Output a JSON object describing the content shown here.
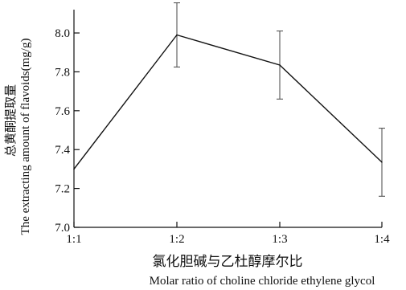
{
  "chart_data": {
    "type": "line",
    "categories": [
      "1:1",
      "1:2",
      "1:3",
      "1:4"
    ],
    "values": [
      7.3,
      7.99,
      7.835,
      7.335
    ],
    "error": [
      0.0,
      0.165,
      0.175,
      0.175
    ],
    "yticks": [
      7.0,
      7.2,
      7.4,
      7.6,
      7.8,
      8.0
    ],
    "ylim": [
      7.0,
      8.12
    ],
    "xlabel_zh": "氯化胆碱与乙杜醇摩尔比",
    "xlabel_en": "Molar ratio of choline chloride ethylene glycol",
    "ylabel_zh": "总黄酮提取量",
    "ylabel_en": "The extracting amount of flavoids(mg/g)",
    "grid": false,
    "line_color": "#111111"
  }
}
